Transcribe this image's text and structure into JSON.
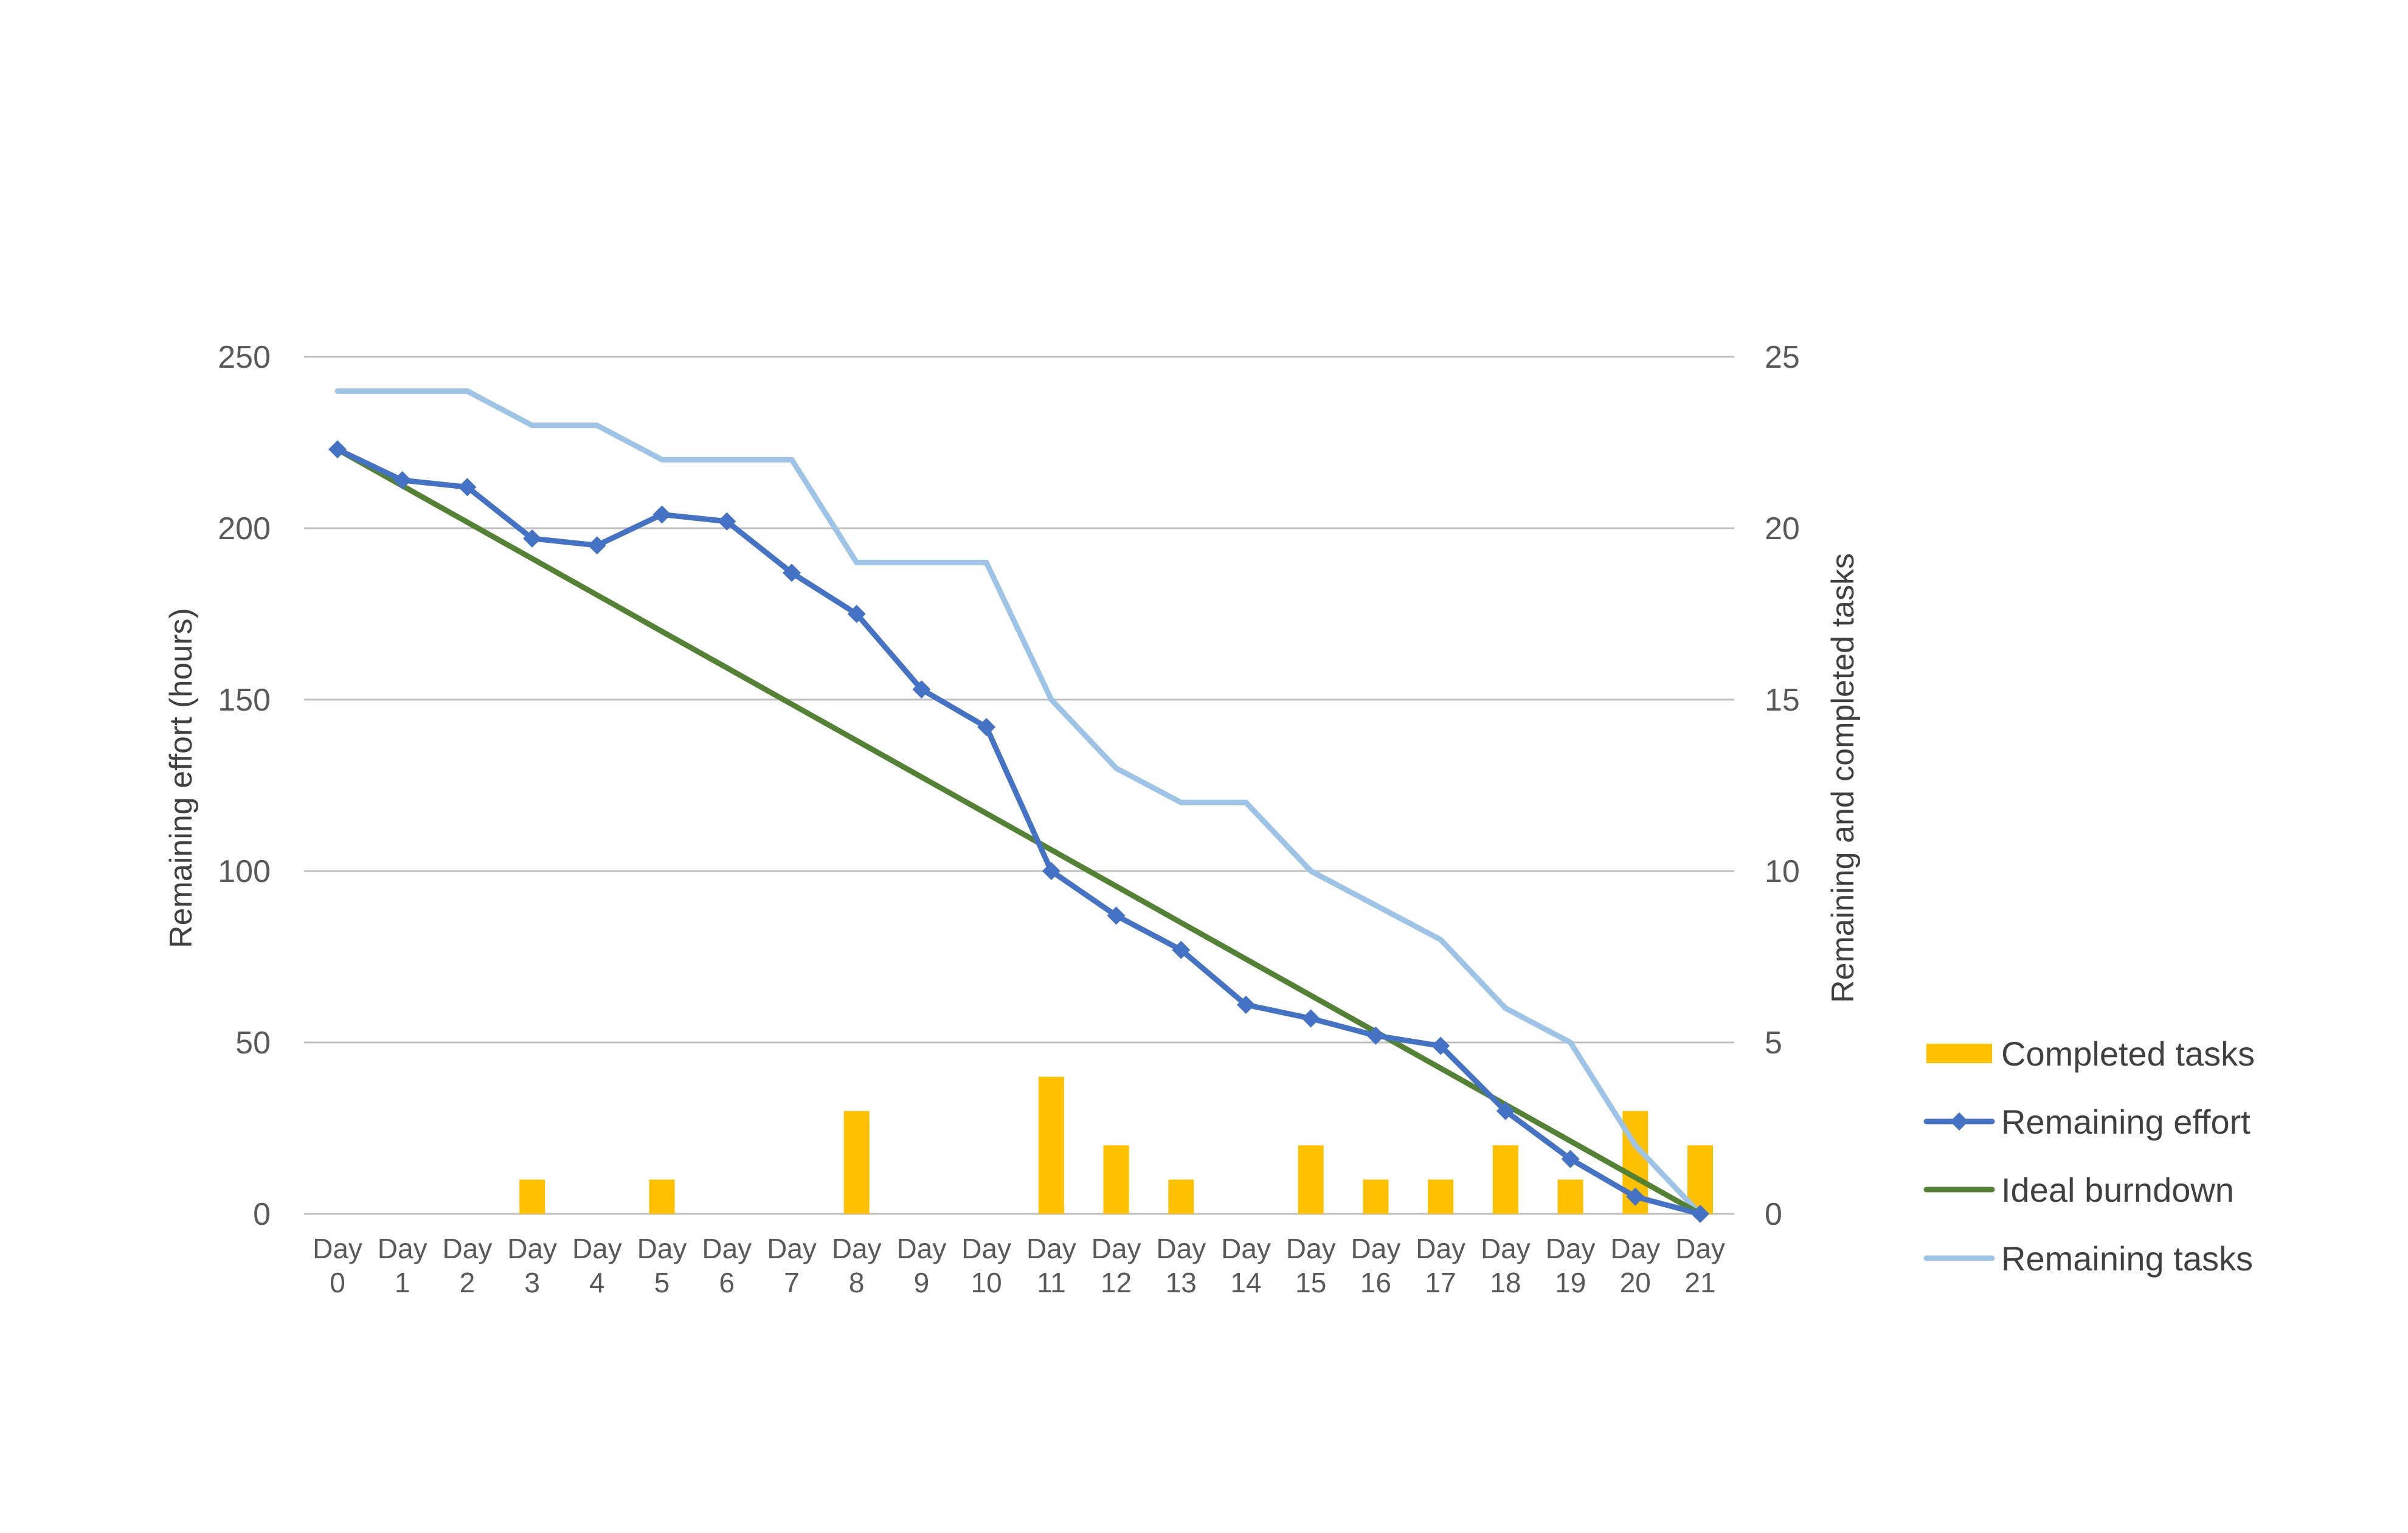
{
  "chart_data": {
    "type": "bar+line",
    "categories": [
      [
        "Day",
        "0"
      ],
      [
        "Day",
        "1"
      ],
      [
        "Day",
        "2"
      ],
      [
        "Day",
        "3"
      ],
      [
        "Day",
        "4"
      ],
      [
        "Day",
        "5"
      ],
      [
        "Day",
        "6"
      ],
      [
        "Day",
        "7"
      ],
      [
        "Day",
        "8"
      ],
      [
        "Day",
        "9"
      ],
      [
        "Day",
        "10"
      ],
      [
        "Day",
        "11"
      ],
      [
        "Day",
        "12"
      ],
      [
        "Day",
        "13"
      ],
      [
        "Day",
        "14"
      ],
      [
        "Day",
        "15"
      ],
      [
        "Day",
        "16"
      ],
      [
        "Day",
        "17"
      ],
      [
        "Day",
        "18"
      ],
      [
        "Day",
        "19"
      ],
      [
        "Day",
        "20"
      ],
      [
        "Day",
        "21"
      ]
    ],
    "y_left": {
      "label": "Remaining effort (hours)",
      "min": 0,
      "max": 250,
      "ticks": [
        0,
        50,
        100,
        150,
        200,
        250
      ]
    },
    "y_right": {
      "label": "Remaining and completed tasks",
      "min": 0,
      "max": 25,
      "ticks": [
        0,
        5,
        10,
        15,
        20,
        25
      ]
    },
    "grid": true,
    "legend_position": "right",
    "series": [
      {
        "name": "Completed tasks",
        "type": "bar",
        "axis": "right",
        "color": "#FFC000",
        "values": [
          0,
          0,
          0,
          1,
          0,
          1,
          0,
          0,
          3,
          0,
          0,
          4,
          2,
          1,
          0,
          2,
          1,
          1,
          2,
          1,
          3,
          2
        ]
      },
      {
        "name": "Remaining effort",
        "type": "line",
        "axis": "left",
        "color": "#4472C4",
        "marker": "diamond",
        "values": [
          223,
          214,
          212,
          197,
          195,
          204,
          202,
          187,
          175,
          153,
          142,
          100,
          87,
          77,
          61,
          57,
          52,
          49,
          30,
          16,
          5,
          0
        ]
      },
      {
        "name": "Ideal burndown",
        "type": "line",
        "axis": "left",
        "color": "#548235",
        "marker": "none",
        "values": [
          223,
          212.38,
          201.76,
          191.14,
          180.52,
          169.9,
          159.29,
          148.67,
          138.05,
          127.43,
          116.81,
          106.19,
          95.57,
          84.95,
          74.33,
          63.71,
          53.1,
          42.48,
          31.86,
          21.24,
          10.62,
          0
        ]
      },
      {
        "name": "Remaining tasks",
        "type": "line",
        "axis": "right",
        "color": "#9DC3E6",
        "marker": "none",
        "values": [
          24,
          24,
          24,
          23,
          23,
          22,
          22,
          22,
          19,
          19,
          19,
          15,
          13,
          12,
          12,
          10,
          9,
          8,
          6,
          5,
          2,
          0
        ]
      }
    ]
  }
}
